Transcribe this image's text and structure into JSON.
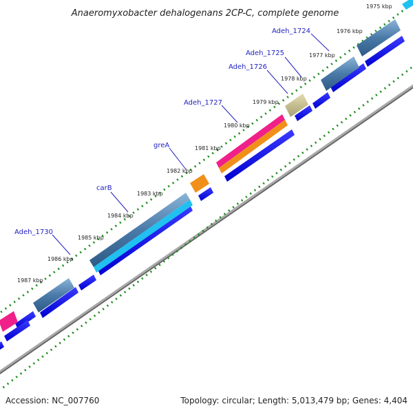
{
  "title": "Anaeromyxobacter dehalogenans 2CP-C, complete genome",
  "footer": {
    "accession": "Accession: NC_007760",
    "topology": "Topology: circular; Length: 5,013,479 bp; Genes: 4,404"
  },
  "kbp_labels": [
    "1975 kbp",
    "1976 kbp",
    "1977 kbp",
    "1978 kbp",
    "1979 kbp",
    "1980 kbp",
    "1981 kbp",
    "1982 kbp",
    "1983 kbp",
    "1984 kbp",
    "1985 kbp",
    "1986 kbp",
    "1987 kbp"
  ],
  "gene_labels": [
    "Adeh_1724",
    "Adeh_1725",
    "Adeh_1726",
    "Adeh_1727",
    "greA",
    "carB",
    "Adeh_1730"
  ],
  "colors": {
    "cds_blue": "#0a0af0",
    "gene_steel": "#4a7aa8",
    "gene_tan": "#c8c08a",
    "gene_magenta": "#f0208a",
    "gene_orange": "#f0901a",
    "gene_cyan": "#20c0f0",
    "backbone": "#888888",
    "tick_green": "#1a8a1a",
    "label_blue": "#1f1fbf"
  }
}
